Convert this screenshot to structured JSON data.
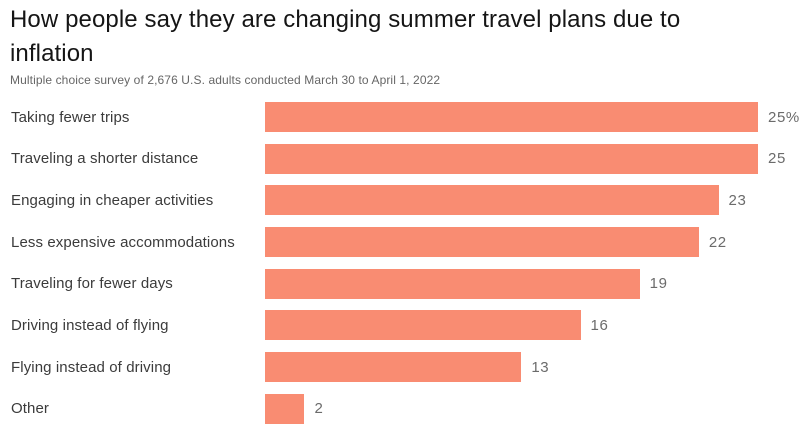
{
  "header": {
    "title": "How people say they are changing summer travel plans due to inflation",
    "subtitle": "Multiple choice survey of 2,676 U.S. adults conducted March 30 to April 1, 2022"
  },
  "colors": {
    "background": "#ffffff",
    "bar": "#F98C72",
    "title_text": "#151515",
    "category_text": "#3b3b3b",
    "value_text": "#6b6b6b"
  },
  "chart_data": {
    "type": "bar",
    "orientation": "horizontal",
    "title": "How people say they are changing summer travel plans due to inflation",
    "subtitle": "Multiple choice survey of 2,676 U.S. adults conducted March 30 to April 1, 2022",
    "categories": [
      "Taking fewer trips",
      "Traveling a shorter distance",
      "Engaging in cheaper activities",
      "Less expensive accommodations",
      "Traveling for fewer days",
      "Driving instead of flying",
      "Flying instead of driving",
      "Other"
    ],
    "values": [
      25,
      25,
      23,
      22,
      19,
      16,
      13,
      2
    ],
    "value_labels": [
      "25%",
      "25",
      "23",
      "22",
      "19",
      "16",
      "13",
      "2"
    ],
    "unit": "percent",
    "xlim": [
      0,
      25
    ],
    "grid": false,
    "legend": false
  }
}
